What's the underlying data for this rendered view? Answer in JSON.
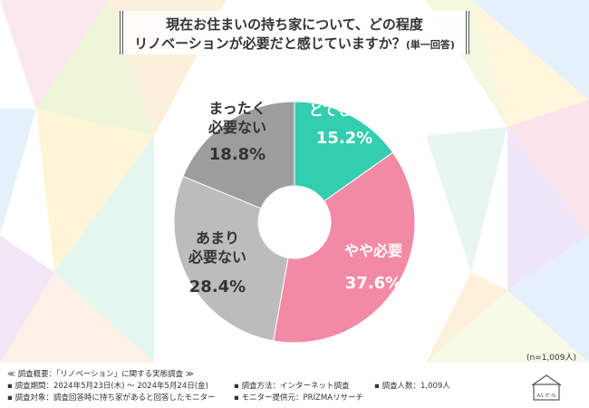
{
  "title": {
    "line1": "現在お住まいの持ち家について、どの程度",
    "line2": "リノベーションが必要だと感じていますか？",
    "line2_suffix": "(単一回答)"
  },
  "sample_size": "(n=1,009人)",
  "footer": {
    "overview": "≪ 調査概要：「リノベーション」に関する実態調査 ≫",
    "period": "▪ 調査期間：2024年5月23日(木) ～ 2024年5月24日(金)",
    "method": "▪ 調査方法：インターネット調査",
    "count": "▪ 調査人数：1,009人",
    "target": "▪ 調査対象：調査回答時に持ち家があると回答したモニター",
    "provider": "▪ モニター提供元：PRIZMAリサーチ"
  },
  "logo_text": "AS IT IS",
  "chart_data": {
    "type": "pie",
    "donut": true,
    "categories": [
      "とても必要",
      "やや必要",
      "あまり必要ない",
      "まったく必要ない"
    ],
    "label_lines": [
      [
        "とても必要"
      ],
      [
        "やや必要"
      ],
      [
        "あまり",
        "必要ない"
      ],
      [
        "まったく",
        "必要ない"
      ]
    ],
    "values": [
      15.2,
      37.6,
      28.4,
      18.8
    ],
    "value_labels": [
      "15.2%",
      "37.6%",
      "28.4%",
      "18.8%"
    ],
    "colors": [
      "#33cdb0",
      "#f38aa5",
      "#bcbcbc",
      "#9d9d9d"
    ],
    "label_colors": [
      "#ffffff",
      "#ffffff",
      "#333333",
      "#333333"
    ],
    "start_angle": "12 o'clock",
    "direction": "clockwise"
  }
}
